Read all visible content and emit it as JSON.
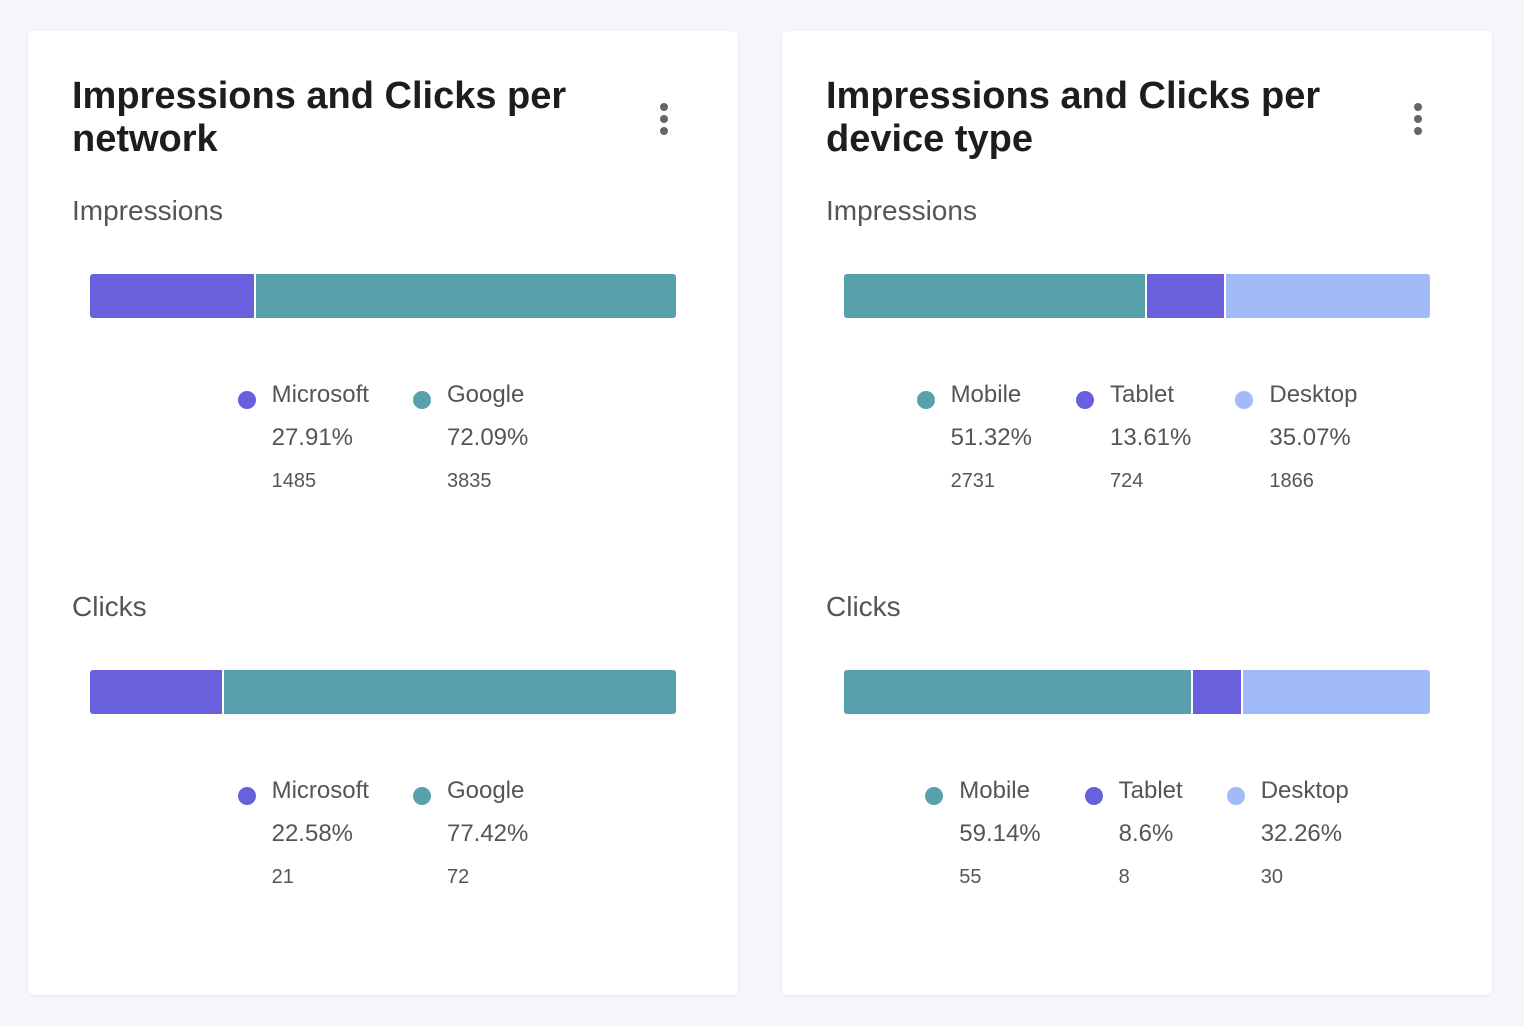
{
  "colors": {
    "microsoft": "#6860dc",
    "google": "#58a0ab",
    "mobile": "#58a0ab",
    "tablet": "#6860dc",
    "desktop": "#a1baf8"
  },
  "cards": {
    "network": {
      "title": "Impressions and Clicks per network",
      "menu_icon": "more-vertical-icon",
      "impressions": {
        "label": "Impressions",
        "chart_data": {
          "type": "bar",
          "stacked": true,
          "orientation": "horizontal",
          "series": [
            {
              "name": "Microsoft",
              "percent_label": "27.91%",
              "value": 1485,
              "count_label": "1485",
              "color": "#6860dc"
            },
            {
              "name": "Google",
              "percent_label": "72.09%",
              "value": 3835,
              "count_label": "3835",
              "color": "#58a0ab"
            }
          ]
        }
      },
      "clicks": {
        "label": "Clicks",
        "chart_data": {
          "type": "bar",
          "stacked": true,
          "orientation": "horizontal",
          "series": [
            {
              "name": "Microsoft",
              "percent_label": "22.58%",
              "value": 21,
              "count_label": "21",
              "color": "#6860dc"
            },
            {
              "name": "Google",
              "percent_label": "77.42%",
              "value": 72,
              "count_label": "72",
              "color": "#58a0ab"
            }
          ]
        }
      }
    },
    "device": {
      "title": "Impressions and Clicks per device type",
      "menu_icon": "more-vertical-icon",
      "impressions": {
        "label": "Impressions",
        "chart_data": {
          "type": "bar",
          "stacked": true,
          "orientation": "horizontal",
          "series": [
            {
              "name": "Mobile",
              "percent_label": "51.32%",
              "value": 2731,
              "count_label": "2731",
              "color": "#58a0ab"
            },
            {
              "name": "Tablet",
              "percent_label": "13.61%",
              "value": 724,
              "count_label": "724",
              "color": "#6860dc"
            },
            {
              "name": "Desktop",
              "percent_label": "35.07%",
              "value": 1866,
              "count_label": "1866",
              "color": "#a1baf8"
            }
          ]
        }
      },
      "clicks": {
        "label": "Clicks",
        "chart_data": {
          "type": "bar",
          "stacked": true,
          "orientation": "horizontal",
          "series": [
            {
              "name": "Mobile",
              "percent_label": "59.14%",
              "value": 55,
              "count_label": "55",
              "color": "#58a0ab"
            },
            {
              "name": "Tablet",
              "percent_label": "8.6%",
              "value": 8,
              "count_label": "8",
              "color": "#6860dc"
            },
            {
              "name": "Desktop",
              "percent_label": "32.26%",
              "value": 30,
              "count_label": "30",
              "color": "#a1baf8"
            }
          ]
        }
      }
    }
  }
}
